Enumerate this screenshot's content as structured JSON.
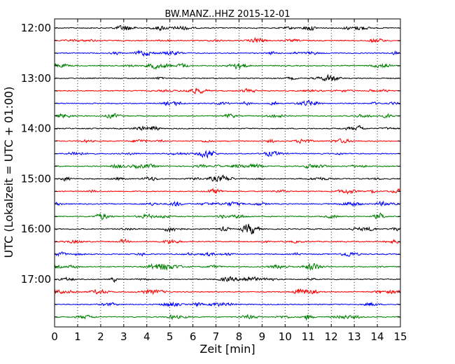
{
  "chart_data": {
    "type": "line",
    "title": "BW.MANZ..HHZ 2015-12-01",
    "xlabel": "Zeit  [min]",
    "ylabel": "UTC (Lokalzeit = UTC + 01:00)",
    "xlim": [
      0,
      15
    ],
    "x_ticks": [
      "0",
      "1",
      "2",
      "3",
      "4",
      "5",
      "6",
      "7",
      "8",
      "9",
      "10",
      "11",
      "12",
      "13",
      "14",
      "15"
    ],
    "y_tick_labels": [
      "12:00",
      "13:00",
      "14:00",
      "15:00",
      "16:00",
      "17:00"
    ],
    "trace_interval_minutes": 15,
    "trace_start_times": [
      "12:00",
      "12:15",
      "12:30",
      "12:45",
      "13:00",
      "13:15",
      "13:30",
      "13:45",
      "14:00",
      "14:15",
      "14:30",
      "14:45",
      "15:00",
      "15:15",
      "15:30",
      "15:45",
      "16:00",
      "16:15",
      "16:30",
      "16:45",
      "17:00",
      "17:15",
      "17:30",
      "17:45"
    ],
    "color_cycle": [
      "#000000",
      "#ff0000",
      "#0000ff",
      "#008000"
    ],
    "grid": "x-dotted"
  }
}
